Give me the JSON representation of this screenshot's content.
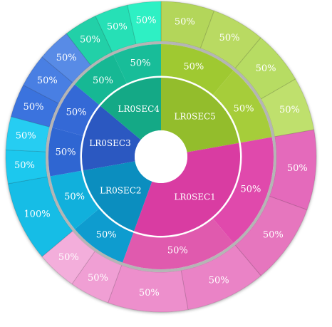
{
  "chart_data": {
    "type": "sunburst",
    "title": "",
    "start_angle_deg": 0,
    "inner": [
      {
        "label": "LR0SEC5",
        "share": 0.2222,
        "color": "#93bd2c"
      },
      {
        "label": "LR0SEC1",
        "share": 0.3333,
        "color": "#d93ca2"
      },
      {
        "label": "LR0SEC2",
        "share": 0.1667,
        "color": "#0b8ebf"
      },
      {
        "label": "LR0SEC3",
        "share": 0.1389,
        "color": "#2b58c1"
      },
      {
        "label": "LR0SEC4",
        "share": 0.1389,
        "color": "#14a986"
      }
    ],
    "middle": [
      {
        "parent": 0,
        "label": "50%",
        "weight": 1,
        "color": "#9fc931"
      },
      {
        "parent": 0,
        "label": "50%",
        "weight": 1,
        "color": "#a6cd3a"
      },
      {
        "parent": 1,
        "label": "50%",
        "weight": 1,
        "color": "#e049ac"
      },
      {
        "parent": 1,
        "label": "50%",
        "weight": 1,
        "color": "#e05aae"
      },
      {
        "parent": 2,
        "label": "50%",
        "weight": 1,
        "color": "#0e9ccf"
      },
      {
        "parent": 2,
        "label": "50%",
        "weight": 1,
        "color": "#11b0dc"
      },
      {
        "parent": 3,
        "label": "50%",
        "weight": 1,
        "color": "#2f66d2"
      },
      {
        "parent": 3,
        "label": "50%",
        "weight": 1,
        "color": "#3469d6"
      },
      {
        "parent": 4,
        "label": "50%",
        "weight": 1,
        "color": "#16b894"
      },
      {
        "parent": 4,
        "label": "50%",
        "weight": 1,
        "color": "#18bd99"
      }
    ],
    "outer": [
      {
        "parent": 0,
        "label": "50%",
        "weight": 1,
        "color": "#b3d65a"
      },
      {
        "parent": 0,
        "label": "50%",
        "weight": 1,
        "color": "#b9da62"
      },
      {
        "parent": 1,
        "label": "50%",
        "weight": 1,
        "color": "#b7dc63"
      },
      {
        "parent": 1,
        "label": "50%",
        "weight": 1,
        "color": "#bfe06d"
      },
      {
        "parent": 2,
        "label": "50%",
        "weight": 1,
        "color": "#e46bbb"
      },
      {
        "parent": 2,
        "label": "50%",
        "weight": 1,
        "color": "#e676be"
      },
      {
        "parent": 3,
        "label": "50%",
        "weight": 1,
        "color": "#ea83c6"
      },
      {
        "parent": 3,
        "label": "50%",
        "weight": 1,
        "color": "#ed8fcc"
      },
      {
        "parent": 4,
        "label": "50%",
        "weight": 1,
        "color": "#f09fd4"
      },
      {
        "parent": 4,
        "label": "50%",
        "weight": 1,
        "color": "#f3aedb"
      },
      {
        "parent": 5,
        "label": "100%",
        "weight": 2,
        "color": "#15bde6"
      },
      {
        "parent": 6,
        "label": "50%",
        "weight": 1,
        "color": "#1ec8ee"
      },
      {
        "parent": 6,
        "label": "50%",
        "weight": 1,
        "color": "#28cdf2"
      },
      {
        "parent": 7,
        "label": "50%",
        "weight": 1,
        "color": "#3b73de"
      },
      {
        "parent": 7,
        "label": "50%",
        "weight": 1,
        "color": "#4a7fe3"
      },
      {
        "parent": 8,
        "label": "50%",
        "weight": 1,
        "color": "#588be6"
      },
      {
        "parent": 8,
        "label": "50%",
        "weight": 1,
        "color": "#23d0a8"
      },
      {
        "parent": 9,
        "label": "50%",
        "weight": 1,
        "color": "#25e0b6"
      },
      {
        "parent": 9,
        "label": "50%",
        "weight": 1,
        "color": "#2df0c4"
      }
    ]
  }
}
